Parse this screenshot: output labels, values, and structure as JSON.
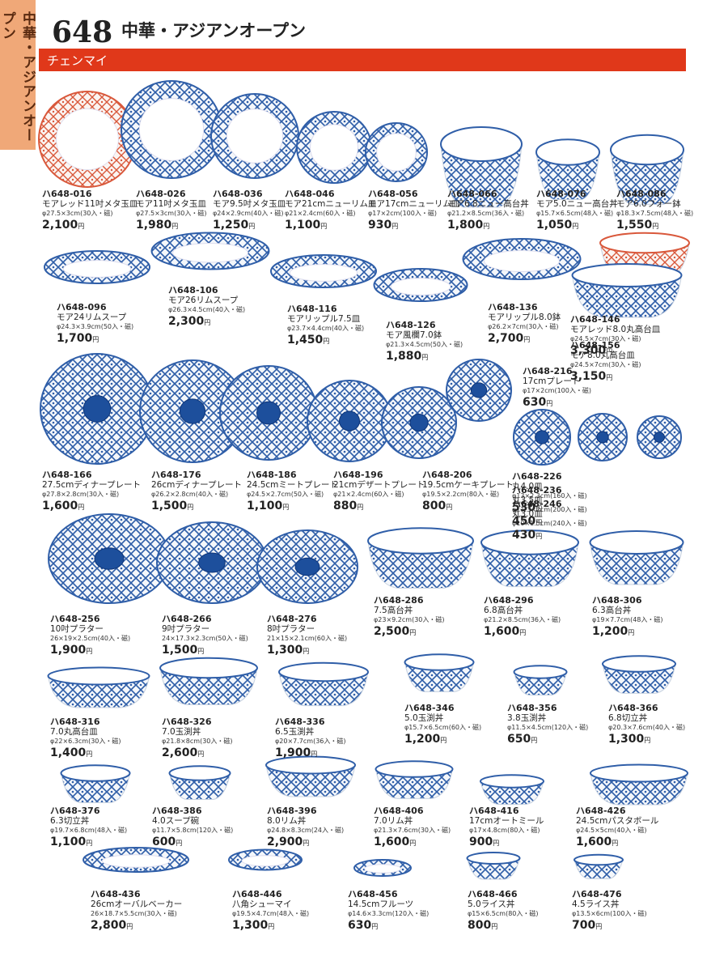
{
  "tab": "中華・アジアンオープン",
  "header": {
    "page": "648",
    "title": "中華・アジアンオープン",
    "series": "チェンマイ"
  },
  "price_unit": "円",
  "items": [
    {
      "code": "ハ648-016",
      "name": "モアレッド11吋メタ玉皿",
      "spec": "φ27.5×3cm(30入・磁)",
      "price": "2,100"
    },
    {
      "code": "ハ648-026",
      "name": "モア11吋メタ玉皿",
      "spec": "φ27.5×3cm(30入・磁)",
      "price": "1,980"
    },
    {
      "code": "ハ648-036",
      "name": "モア9.5吋メタ玉皿",
      "spec": "φ24×2.9cm(40入・磁)",
      "price": "1,250"
    },
    {
      "code": "ハ648-046",
      "name": "モア21cmニューリム皿",
      "spec": "φ21×2.4cm(60入・磁)",
      "price": "1,100"
    },
    {
      "code": "ハ648-056",
      "name": "モア17cmニューリム皿",
      "spec": "φ17×2cm(100入・磁)",
      "price": "930"
    },
    {
      "code": "ハ648-066",
      "name": "モア6.8ニュー高台丼",
      "spec": "φ21.2×8.5cm(36入・磁)",
      "price": "1,800"
    },
    {
      "code": "ハ648-076",
      "name": "モア5.0ニュー高台丼",
      "spec": "φ15.7×6.5cm(48入・磁)",
      "price": "1,050"
    },
    {
      "code": "ハ648-086",
      "name": "モア6.0フォー鉢",
      "spec": "φ18.3×7.5cm(48入・磁)",
      "price": "1,550"
    },
    {
      "code": "ハ648-096",
      "name": "モア24リムスープ",
      "spec": "φ24.3×3.9cm(50入・磁)",
      "price": "1,700"
    },
    {
      "code": "ハ648-106",
      "name": "モア26リムスープ",
      "spec": "φ26.3×4.5cm(40入・磁)",
      "price": "2,300"
    },
    {
      "code": "ハ648-116",
      "name": "モアリップル7.5皿",
      "spec": "φ23.7×4.4cm(40入・磁)",
      "price": "1,450"
    },
    {
      "code": "ハ648-126",
      "name": "モア風欄7.0鉢",
      "spec": "φ21.3×4.5cm(50入・磁)",
      "price": "1,880"
    },
    {
      "code": "ハ648-136",
      "name": "モアリップル8.0鉢",
      "spec": "φ26.2×7cm(30入・磁)",
      "price": "2,700"
    },
    {
      "code": "ハ648-146",
      "name": "モアレッド8.0丸高台皿",
      "spec": "φ24.5×7cm(30入・磁)",
      "price": "3,300"
    },
    {
      "code": "ハ648-156",
      "name": "モア8.0丸高台皿",
      "spec": "φ24.5×7cm(30入・磁)",
      "price": "3,150"
    },
    {
      "code": "ハ648-166",
      "name": "27.5cmディナープレート",
      "spec": "φ27.8×2.8cm(30入・磁)",
      "price": "1,600"
    },
    {
      "code": "ハ648-176",
      "name": "26cmディナープレート",
      "spec": "φ26.2×2.8cm(40入・磁)",
      "price": "1,500"
    },
    {
      "code": "ハ648-186",
      "name": "24.5cmミートプレート",
      "spec": "φ24.5×2.7cm(50入・磁)",
      "price": "1,100"
    },
    {
      "code": "ハ648-196",
      "name": "21cmデザートプレート",
      "spec": "φ21×2.4cm(60入・磁)",
      "price": "880"
    },
    {
      "code": "ハ648-206",
      "name": "19.5cmケーキプレート",
      "spec": "φ19.5×2.2cm(80入・磁)",
      "price": "800"
    },
    {
      "code": "ハ648-216",
      "name": "17cmプレート",
      "spec": "φ17×2cm(100入・磁)",
      "price": "630"
    },
    {
      "code": "ハ648-226",
      "name": "丸4.0皿",
      "spec": "φ13×2.3cm(160入・磁)",
      "price": "530"
    },
    {
      "code": "ハ648-236",
      "name": "丸3.5皿",
      "spec": "φ11.3×2cm(200入・磁)",
      "price": "450"
    },
    {
      "code": "ハ648-246",
      "name": "丸3.0皿",
      "spec": "φ10×1.5cm(240入・磁)",
      "price": "430"
    },
    {
      "code": "ハ648-256",
      "name": "10吋プラター",
      "spec": "26×19×2.5cm(40入・磁)",
      "price": "1,900"
    },
    {
      "code": "ハ648-266",
      "name": "9吋プラター",
      "spec": "24×17.3×2.3cm(50入・磁)",
      "price": "1,500"
    },
    {
      "code": "ハ648-276",
      "name": "8吋プラター",
      "spec": "21×15×2.1cm(60入・磁)",
      "price": "1,300"
    },
    {
      "code": "ハ648-286",
      "name": "7.5高台丼",
      "spec": "φ23×9.2cm(30入・磁)",
      "price": "2,500"
    },
    {
      "code": "ハ648-296",
      "name": "6.8高台丼",
      "spec": "φ21.2×8.5cm(36入・磁)",
      "price": "1,600"
    },
    {
      "code": "ハ648-306",
      "name": "6.3高台丼",
      "spec": "φ19×7.7cm(48入・磁)",
      "price": "1,200"
    },
    {
      "code": "ハ648-316",
      "name": "7.0丸高台皿",
      "spec": "φ22×6.3cm(30入・磁)",
      "price": "1,400"
    },
    {
      "code": "ハ648-326",
      "name": "7.0玉渕丼",
      "spec": "φ21.8×8cm(30入・磁)",
      "price": "2,600"
    },
    {
      "code": "ハ648-336",
      "name": "6.5玉渕丼",
      "spec": "φ20×7.7cm(36入・磁)",
      "price": "1,900"
    },
    {
      "code": "ハ648-346",
      "name": "5.0玉渕丼",
      "spec": "φ15.7×6.5cm(60入・磁)",
      "price": "1,200"
    },
    {
      "code": "ハ648-356",
      "name": "3.8玉渕丼",
      "spec": "φ11.5×4.5cm(120入・磁)",
      "price": "650"
    },
    {
      "code": "ハ648-366",
      "name": "6.8切立丼",
      "spec": "φ20.3×7.6cm(40入・磁)",
      "price": "1,300"
    },
    {
      "code": "ハ648-376",
      "name": "6.3切立丼",
      "spec": "φ19.7×6.8cm(48入・磁)",
      "price": "1,100"
    },
    {
      "code": "ハ648-386",
      "name": "4.0スープ碗",
      "spec": "φ11.7×5.8cm(120入・磁)",
      "price": "600"
    },
    {
      "code": "ハ648-396",
      "name": "8.0リム丼",
      "spec": "φ24.8×8.3cm(24入・磁)",
      "price": "2,900"
    },
    {
      "code": "ハ648-406",
      "name": "7.0リム丼",
      "spec": "φ21.3×7.6cm(30入・磁)",
      "price": "1,600"
    },
    {
      "code": "ハ648-416",
      "name": "17cmオートミール",
      "spec": "φ17×4.8cm(80入・磁)",
      "price": "900"
    },
    {
      "code": "ハ648-426",
      "name": "24.5cmパスタボール",
      "spec": "φ24.5×5cm(40入・磁)",
      "price": "1,600"
    },
    {
      "code": "ハ648-436",
      "name": "26cmオーバルベーカー",
      "spec": "26×18.7×5.5cm(30入・磁)",
      "price": "2,800"
    },
    {
      "code": "ハ648-446",
      "name": "八角シューマイ",
      "spec": "φ19.5×4.7cm(48入・磁)",
      "price": "1,300"
    },
    {
      "code": "ハ648-456",
      "name": "14.5cmフルーツ",
      "spec": "φ14.6×3.3cm(120入・磁)",
      "price": "630"
    },
    {
      "code": "ハ648-466",
      "name": "5.0ライス丼",
      "spec": "φ15×6.5cm(80入・磁)",
      "price": "800"
    },
    {
      "code": "ハ648-476",
      "name": "4.5ライス丼",
      "spec": "φ13.5×6cm(100入・磁)",
      "price": "700"
    }
  ]
}
